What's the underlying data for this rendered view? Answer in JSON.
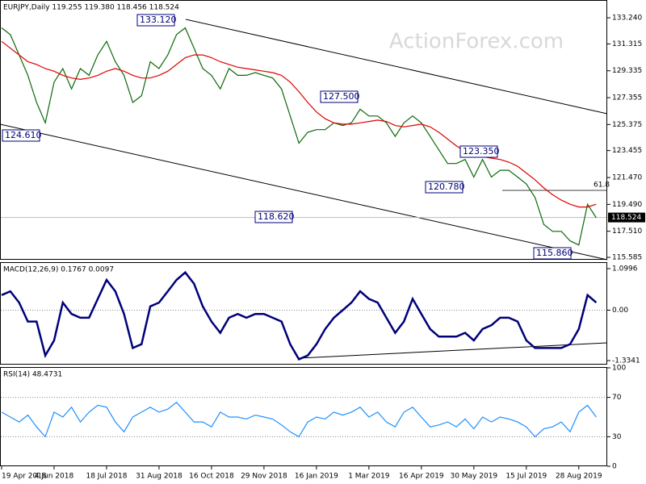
{
  "watermark": "ActionForex.com",
  "chart_data": [
    {
      "type": "line",
      "title": "EURJPY,Daily  119.255 119.380 118.456 118.524",
      "categories": [
        "19 Apr 2018",
        null,
        null,
        null,
        null,
        null,
        "4 Jun 2018",
        null,
        null,
        null,
        null,
        null,
        "18 Jul 2018",
        null,
        null,
        null,
        null,
        null,
        "31 Aug 2018",
        null,
        null,
        null,
        null,
        null,
        "16 Oct 2018",
        null,
        null,
        null,
        null,
        null,
        "29 Nov 2018",
        null,
        null,
        null,
        null,
        null,
        "16 Jan 2019",
        null,
        null,
        null,
        null,
        null,
        "1 Mar 2019",
        null,
        null,
        null,
        null,
        null,
        "16 Apr 2019",
        null,
        null,
        null,
        null,
        null,
        "30 May 2019",
        null,
        null,
        null,
        null,
        null,
        "15 Jul 2019",
        null,
        null,
        null,
        null,
        null,
        "28 Aug 2019",
        null,
        null
      ],
      "series": [
        {
          "name": "EURJPY",
          "color": "#0a6a0a",
          "values": [
            132.5,
            132,
            130.5,
            129,
            127,
            125.5,
            128.5,
            129.5,
            128,
            129.5,
            129,
            130.5,
            131.5,
            130,
            129,
            127,
            127.5,
            130,
            129.5,
            130.5,
            132,
            132.5,
            131,
            129.5,
            129,
            128,
            129.5,
            129,
            129,
            129.2,
            129,
            128.8,
            128,
            126,
            124,
            124.8,
            125,
            125,
            125.5,
            125.3,
            125.5,
            126.5,
            126,
            126,
            125.5,
            124.5,
            125.5,
            126,
            125.5,
            124.5,
            123.5,
            122.5,
            122.5,
            122.8,
            121.5,
            122.8,
            121.5,
            122,
            122,
            121.5,
            121,
            120,
            118,
            117.5,
            117.5,
            116.8,
            116.5,
            119.5,
            118.5
          ]
        },
        {
          "color": "#e00000",
          "values": [
            131.5,
            131,
            130.5,
            130,
            129.8,
            129.5,
            129.3,
            129,
            128.8,
            128.7,
            128.8,
            129,
            129.3,
            129.5,
            129.3,
            129,
            128.8,
            128.8,
            129,
            129.3,
            129.8,
            130.3,
            130.5,
            130.5,
            130.3,
            130,
            129.8,
            129.6,
            129.5,
            129.4,
            129.3,
            129.2,
            129,
            128.5,
            127.8,
            127,
            126.3,
            125.8,
            125.5,
            125.4,
            125.4,
            125.5,
            125.6,
            125.7,
            125.6,
            125.3,
            125.2,
            125.3,
            125.4,
            125.2,
            124.8,
            124.3,
            123.8,
            123.4,
            123.2,
            123,
            122.9,
            122.8,
            122.6,
            122.3,
            121.8,
            121.3,
            120.7,
            120.2,
            119.8,
            119.5,
            119.3,
            119.3,
            119.5
          ]
        }
      ],
      "last": {
        "value": 118.524,
        "label": "118.524"
      },
      "ylim": [
        115.41,
        134.55
      ],
      "yticks": [
        {
          "value": 133.24,
          "label": "133.240"
        },
        {
          "value": 131.315,
          "label": "131.315"
        },
        {
          "value": 129.335,
          "label": "129.335"
        },
        {
          "value": 127.355,
          "label": "127.355"
        },
        {
          "value": 125.375,
          "label": "125.375"
        },
        {
          "value": 123.455,
          "label": "123.455"
        },
        {
          "value": 121.47,
          "label": "121.470"
        },
        {
          "value": 119.49,
          "label": "119.490"
        },
        {
          "value": 117.51,
          "label": "117.510"
        },
        {
          "value": 115.585,
          "label": "115.585"
        }
      ],
      "annotations": [
        "133.120",
        "124.610",
        "118.620",
        "127.500",
        "123.350",
        "120.780",
        "115.860",
        "61.8"
      ]
    },
    {
      "type": "line",
      "title": "MACD(12,26,9) 0.1767 0.0097",
      "series": [
        {
          "color": "#00007a",
          "values": [
            0.4,
            0.5,
            0.2,
            -0.3,
            -0.3,
            -1.2,
            -0.8,
            0.2,
            -0.1,
            -0.2,
            -0.2,
            0.3,
            0.8,
            0.5,
            -0.1,
            -1.0,
            -0.9,
            0.1,
            0.2,
            0.5,
            0.8,
            1.0,
            0.7,
            0.1,
            -0.3,
            -0.6,
            -0.2,
            -0.1,
            -0.2,
            -0.1,
            -0.1,
            -0.2,
            -0.3,
            -0.9,
            -1.3,
            -1.2,
            -0.9,
            -0.5,
            -0.2,
            0.0,
            0.2,
            0.5,
            0.3,
            0.2,
            -0.2,
            -0.6,
            -0.3,
            0.3,
            -0.1,
            -0.5,
            -0.7,
            -0.7,
            -0.7,
            -0.6,
            -0.8,
            -0.5,
            -0.4,
            -0.2,
            -0.2,
            -0.3,
            -0.8,
            -1.0,
            -1.0,
            -1.0,
            -1.0,
            -0.9,
            -0.5,
            0.4,
            0.2
          ]
        }
      ],
      "ylim": [
        -1.3341,
        1.0996
      ],
      "yticks": [
        1.0996,
        {
          "value": 0,
          "label": "0.00"
        },
        -1.3341
      ]
    },
    {
      "type": "line",
      "title": "RSI(14) 48.4731",
      "series": [
        {
          "color": "#1e90ff",
          "values": [
            55,
            50,
            45,
            52,
            40,
            30,
            55,
            50,
            60,
            45,
            55,
            62,
            60,
            45,
            35,
            50,
            55,
            60,
            55,
            58,
            65,
            55,
            45,
            45,
            40,
            55,
            50,
            50,
            48,
            52,
            50,
            48,
            42,
            35,
            30,
            45,
            50,
            48,
            55,
            52,
            55,
            60,
            50,
            55,
            45,
            40,
            55,
            60,
            50,
            40,
            42,
            45,
            40,
            48,
            38,
            50,
            45,
            50,
            48,
            45,
            40,
            30,
            38,
            40,
            45,
            35,
            55,
            62,
            50
          ]
        }
      ],
      "ylim": [
        0,
        100
      ],
      "yticks": [
        100,
        70,
        30,
        0
      ]
    }
  ]
}
